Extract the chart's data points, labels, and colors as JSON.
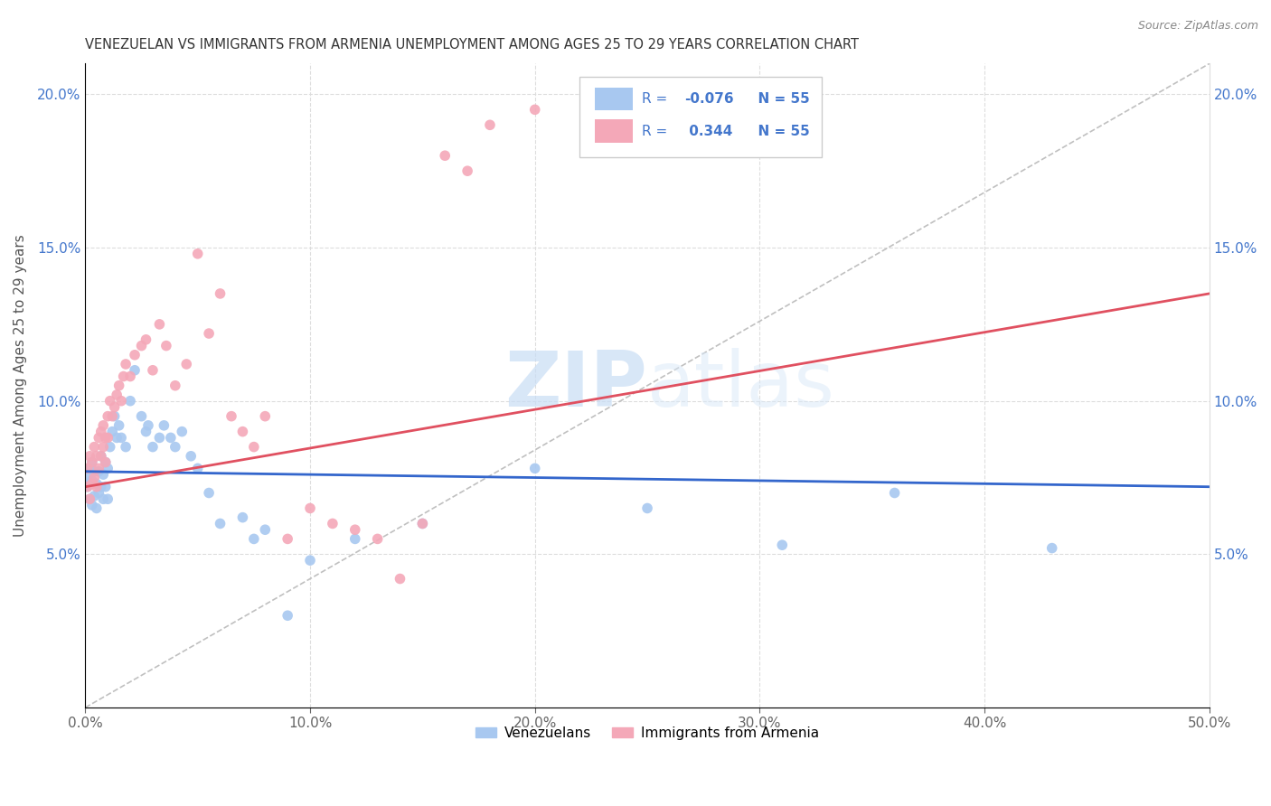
{
  "title": "VENEZUELAN VS IMMIGRANTS FROM ARMENIA UNEMPLOYMENT AMONG AGES 25 TO 29 YEARS CORRELATION CHART",
  "source": "Source: ZipAtlas.com",
  "ylabel": "Unemployment Among Ages 25 to 29 years",
  "xlim": [
    0,
    0.5
  ],
  "ylim": [
    0,
    0.21
  ],
  "xticks": [
    0.0,
    0.1,
    0.2,
    0.3,
    0.4,
    0.5
  ],
  "xticklabels": [
    "0.0%",
    "10.0%",
    "20.0%",
    "30.0%",
    "40.0%",
    "50.0%"
  ],
  "yticks": [
    0.05,
    0.1,
    0.15,
    0.2
  ],
  "yticklabels": [
    "5.0%",
    "10.0%",
    "15.0%",
    "20.0%"
  ],
  "blue_color": "#a8c8f0",
  "pink_color": "#f4a8b8",
  "blue_line_color": "#3366cc",
  "pink_line_color": "#e05060",
  "dashed_line_color": "#c0c0c0",
  "legend_text_color": "#4477cc",
  "watermark_color": "#d0e4f8",
  "blue_points_x": [
    0.001,
    0.001,
    0.002,
    0.002,
    0.003,
    0.003,
    0.003,
    0.004,
    0.004,
    0.005,
    0.005,
    0.006,
    0.006,
    0.007,
    0.007,
    0.008,
    0.008,
    0.009,
    0.009,
    0.01,
    0.01,
    0.011,
    0.012,
    0.013,
    0.014,
    0.015,
    0.016,
    0.018,
    0.02,
    0.022,
    0.025,
    0.027,
    0.028,
    0.03,
    0.033,
    0.035,
    0.038,
    0.04,
    0.043,
    0.047,
    0.05,
    0.055,
    0.06,
    0.07,
    0.075,
    0.08,
    0.09,
    0.1,
    0.12,
    0.15,
    0.2,
    0.25,
    0.31,
    0.36,
    0.43
  ],
  "blue_points_y": [
    0.075,
    0.072,
    0.078,
    0.068,
    0.08,
    0.074,
    0.066,
    0.077,
    0.069,
    0.073,
    0.065,
    0.077,
    0.07,
    0.082,
    0.072,
    0.076,
    0.068,
    0.08,
    0.072,
    0.078,
    0.068,
    0.085,
    0.09,
    0.095,
    0.088,
    0.092,
    0.088,
    0.085,
    0.1,
    0.11,
    0.095,
    0.09,
    0.092,
    0.085,
    0.088,
    0.092,
    0.088,
    0.085,
    0.09,
    0.082,
    0.078,
    0.07,
    0.06,
    0.062,
    0.055,
    0.058,
    0.03,
    0.048,
    0.055,
    0.06,
    0.078,
    0.065,
    0.053,
    0.07,
    0.052
  ],
  "pink_points_x": [
    0.001,
    0.001,
    0.002,
    0.002,
    0.003,
    0.003,
    0.004,
    0.004,
    0.005,
    0.005,
    0.006,
    0.006,
    0.007,
    0.007,
    0.008,
    0.008,
    0.009,
    0.009,
    0.01,
    0.01,
    0.011,
    0.012,
    0.013,
    0.014,
    0.015,
    0.016,
    0.017,
    0.018,
    0.02,
    0.022,
    0.025,
    0.027,
    0.03,
    0.033,
    0.036,
    0.04,
    0.045,
    0.05,
    0.055,
    0.06,
    0.065,
    0.07,
    0.075,
    0.08,
    0.09,
    0.1,
    0.11,
    0.12,
    0.13,
    0.14,
    0.15,
    0.16,
    0.17,
    0.18,
    0.2
  ],
  "pink_points_y": [
    0.078,
    0.072,
    0.082,
    0.068,
    0.08,
    0.073,
    0.085,
    0.075,
    0.082,
    0.072,
    0.088,
    0.078,
    0.09,
    0.082,
    0.092,
    0.085,
    0.088,
    0.08,
    0.095,
    0.088,
    0.1,
    0.095,
    0.098,
    0.102,
    0.105,
    0.1,
    0.108,
    0.112,
    0.108,
    0.115,
    0.118,
    0.12,
    0.11,
    0.125,
    0.118,
    0.105,
    0.112,
    0.148,
    0.122,
    0.135,
    0.095,
    0.09,
    0.085,
    0.095,
    0.055,
    0.065,
    0.06,
    0.058,
    0.055,
    0.042,
    0.06,
    0.18,
    0.175,
    0.19,
    0.195
  ]
}
